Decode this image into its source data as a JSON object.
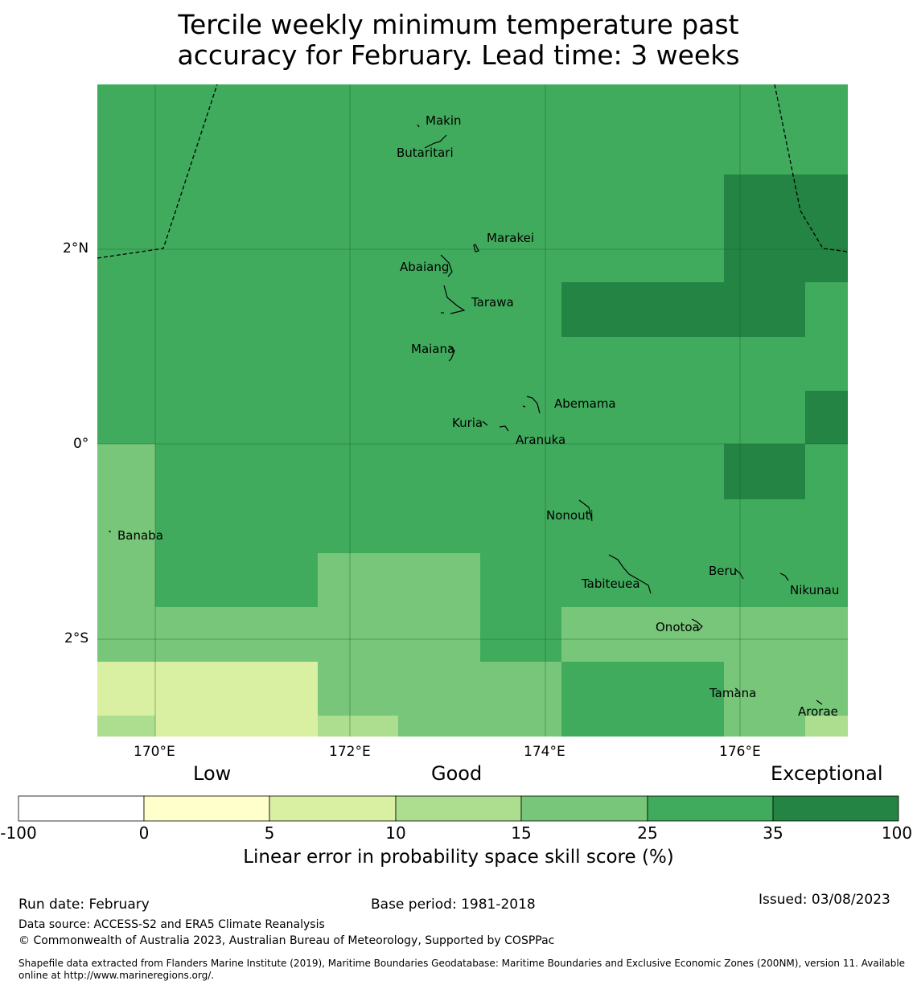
{
  "title": {
    "line1": "Tercile weekly minimum temperature past",
    "line2": "accuracy for February. Lead time: 3 weeks"
  },
  "map": {
    "longitude_ticks": [
      "170°E",
      "172°E",
      "174°E",
      "176°E"
    ],
    "latitude_ticks": [
      "2°N",
      "0°",
      "2°S"
    ],
    "places": [
      "Makin",
      "Butaritari",
      "Marakei",
      "Abaiang",
      "Tarawa",
      "Maiana",
      "Abemama",
      "Kuria",
      "Aranuka",
      "Banaba",
      "Nonouti",
      "Beru",
      "Tabiteuea",
      "Nikunau",
      "Onotoa",
      "Tamana",
      "Arorae"
    ],
    "grid_note": "Cells coloured by skill-score category; darkest = 35–100, mid = 25–35, light = 15–25, pale = 10–15, very pale = 5–10"
  },
  "legend": {
    "category_low": "Low",
    "category_good": "Good",
    "category_exceptional": "Exceptional",
    "boundaries": [
      "-100",
      "0",
      "5",
      "10",
      "15",
      "25",
      "35",
      "100"
    ],
    "colors": [
      "#ffffff",
      "#ffffcc",
      "#d9f0a3",
      "#addd8e",
      "#78c679",
      "#41ab5d",
      "#238443"
    ],
    "title": "Linear error in probability space skill score (%)"
  },
  "footer": {
    "run_date": "Run date: February",
    "base_period": "Base period: 1981-2018",
    "issued": "Issued: 03/08/2023",
    "data_source": "Data source: ACCESS-S2 and ERA5 Climate Reanalysis",
    "copyright": "© Commonwealth of Australia 2023, Australian Bureau of Meteorology, Supported by COSPPac",
    "shapefile": "Shapefile data extracted from Flanders Marine Institute (2019), Maritime Boundaries Geodatabase: Maritime Boundaries and Exclusive Economic Zones (200NM), version 11. Available online at http://www.marineregions.org/."
  }
}
